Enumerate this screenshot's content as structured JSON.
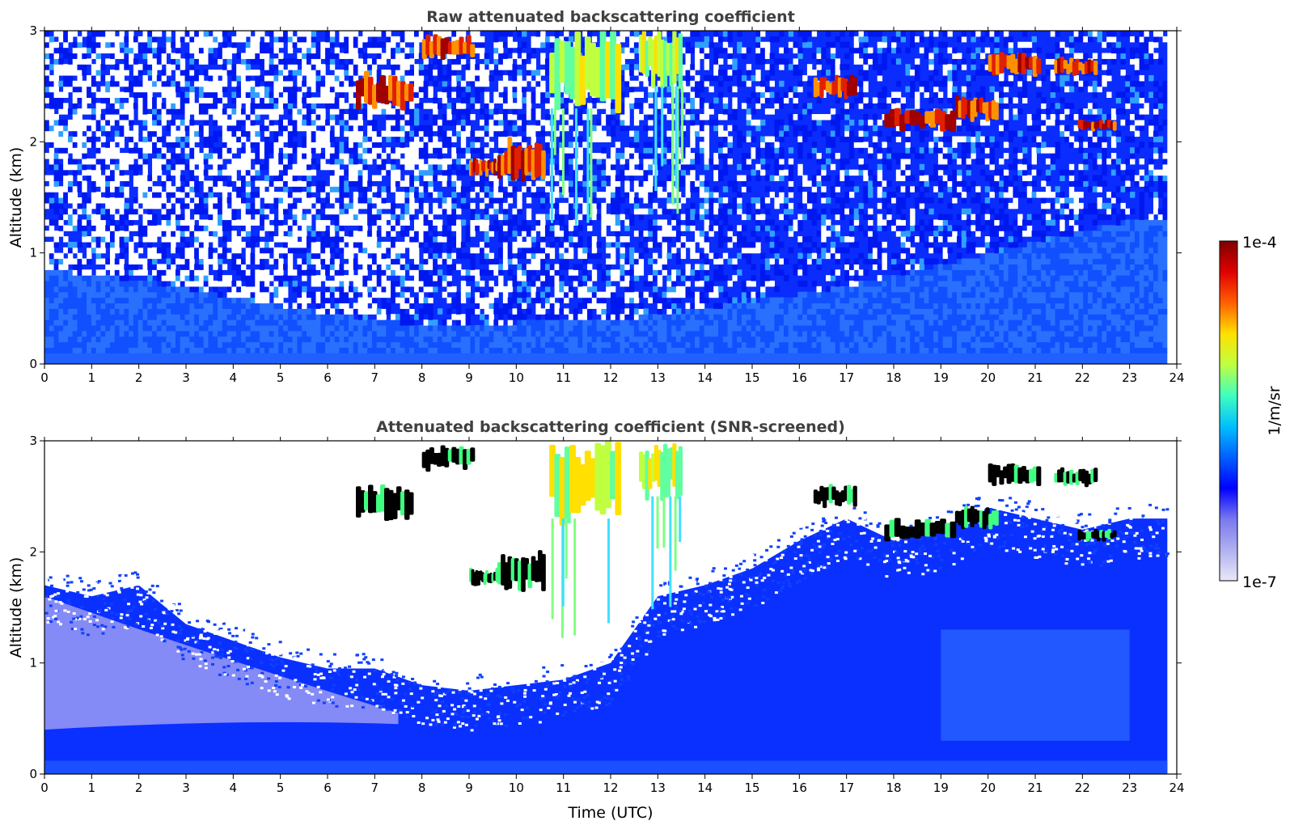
{
  "chart_data": [
    {
      "type": "heatmap",
      "title": "Raw attenuated backscattering coefficient",
      "xlabel": "",
      "ylabel": "Altitude (km)",
      "xlim": [
        0,
        24
      ],
      "ylim": [
        0,
        3
      ],
      "xticks": [
        "0",
        "1",
        "2",
        "3",
        "4",
        "5",
        "6",
        "7",
        "8",
        "9",
        "10",
        "11",
        "12",
        "13",
        "14",
        "15",
        "16",
        "17",
        "18",
        "19",
        "20",
        "21",
        "22",
        "23",
        "24"
      ],
      "yticks": [
        "0",
        "1",
        "2",
        "3"
      ],
      "screened": false,
      "boundary_layer_top_km": [
        [
          0,
          0.85
        ],
        [
          2,
          0.75
        ],
        [
          4,
          0.6
        ],
        [
          6,
          0.45
        ],
        [
          8,
          0.35
        ],
        [
          12,
          0.4
        ],
        [
          14,
          0.5
        ],
        [
          17,
          0.7
        ],
        [
          20,
          1.0
        ],
        [
          23,
          1.3
        ]
      ],
      "cloud_features": [
        {
          "x": [
            6.6,
            7.8
          ],
          "y": [
            2.3,
            2.6
          ],
          "level": "high"
        },
        {
          "x": [
            8.0,
            9.1
          ],
          "y": [
            2.75,
            2.95
          ],
          "level": "high"
        },
        {
          "x": [
            9.0,
            9.6
          ],
          "y": [
            1.7,
            1.85
          ],
          "level": "high"
        },
        {
          "x": [
            9.6,
            10.6
          ],
          "y": [
            1.65,
            2.0
          ],
          "level": "high"
        },
        {
          "x": [
            10.7,
            12.2
          ],
          "y": [
            2.3,
            3.0
          ],
          "level": "medium"
        },
        {
          "x": [
            12.6,
            13.5
          ],
          "y": [
            2.5,
            3.0
          ],
          "level": "medium"
        },
        {
          "x": [
            16.3,
            17.2
          ],
          "y": [
            2.4,
            2.6
          ],
          "level": "high"
        },
        {
          "x": [
            17.8,
            19.3
          ],
          "y": [
            2.1,
            2.3
          ],
          "level": "high"
        },
        {
          "x": [
            19.3,
            20.2
          ],
          "y": [
            2.2,
            2.4
          ],
          "level": "high"
        },
        {
          "x": [
            20.0,
            21.1
          ],
          "y": [
            2.6,
            2.8
          ],
          "level": "high"
        },
        {
          "x": [
            21.4,
            22.3
          ],
          "y": [
            2.6,
            2.75
          ],
          "level": "high"
        },
        {
          "x": [
            21.9,
            22.7
          ],
          "y": [
            2.1,
            2.2
          ],
          "level": "high"
        }
      ]
    },
    {
      "type": "heatmap",
      "title": "Attenuated backscattering coefficient (SNR-screened)",
      "xlabel": "Time (UTC)",
      "ylabel": "Altitude (km)",
      "xlim": [
        0,
        24
      ],
      "ylim": [
        0,
        3
      ],
      "xticks": [
        "0",
        "1",
        "2",
        "3",
        "4",
        "5",
        "6",
        "7",
        "8",
        "9",
        "10",
        "11",
        "12",
        "13",
        "14",
        "15",
        "16",
        "17",
        "18",
        "19",
        "20",
        "21",
        "22",
        "23",
        "24"
      ],
      "yticks": [
        "0",
        "1",
        "2",
        "3"
      ],
      "screened": true,
      "valid_data_top_km": [
        [
          0,
          1.7
        ],
        [
          1,
          1.6
        ],
        [
          2,
          1.7
        ],
        [
          3,
          1.35
        ],
        [
          4,
          1.2
        ],
        [
          5,
          1.05
        ],
        [
          6,
          0.95
        ],
        [
          7,
          0.95
        ],
        [
          8,
          0.8
        ],
        [
          9,
          0.75
        ],
        [
          10,
          0.8
        ],
        [
          11,
          0.85
        ],
        [
          12,
          1.0
        ],
        [
          13,
          1.6
        ],
        [
          14,
          1.7
        ],
        [
          15,
          1.85
        ],
        [
          16,
          2.1
        ],
        [
          17,
          2.3
        ],
        [
          18,
          2.1
        ],
        [
          19,
          2.2
        ],
        [
          20,
          2.4
        ],
        [
          21,
          2.3
        ],
        [
          22,
          2.2
        ],
        [
          23,
          2.3
        ],
        [
          23.8,
          2.3
        ]
      ],
      "cloud_features": [
        {
          "x": [
            6.6,
            7.8
          ],
          "y": [
            2.3,
            2.6
          ],
          "level": "high"
        },
        {
          "x": [
            8.0,
            9.1
          ],
          "y": [
            2.75,
            2.95
          ],
          "level": "high"
        },
        {
          "x": [
            9.0,
            9.6
          ],
          "y": [
            1.7,
            1.85
          ],
          "level": "high"
        },
        {
          "x": [
            9.6,
            10.6
          ],
          "y": [
            1.65,
            2.0
          ],
          "level": "high"
        },
        {
          "x": [
            10.7,
            12.2
          ],
          "y": [
            2.3,
            3.0
          ],
          "level": "medium"
        },
        {
          "x": [
            12.6,
            13.5
          ],
          "y": [
            2.5,
            3.0
          ],
          "level": "medium"
        },
        {
          "x": [
            16.3,
            17.2
          ],
          "y": [
            2.4,
            2.6
          ],
          "level": "high"
        },
        {
          "x": [
            17.8,
            19.3
          ],
          "y": [
            2.1,
            2.3
          ],
          "level": "high"
        },
        {
          "x": [
            19.3,
            20.2
          ],
          "y": [
            2.2,
            2.4
          ],
          "level": "high"
        },
        {
          "x": [
            20.0,
            21.1
          ],
          "y": [
            2.6,
            2.8
          ],
          "level": "high"
        },
        {
          "x": [
            21.4,
            22.3
          ],
          "y": [
            2.6,
            2.75
          ],
          "level": "high"
        },
        {
          "x": [
            21.9,
            22.7
          ],
          "y": [
            2.1,
            2.2
          ],
          "level": "high"
        }
      ]
    }
  ],
  "colorbar": {
    "label": "1/m/sr",
    "max_label": "1e-4",
    "min_label": "1e-7",
    "colormap": "jet",
    "colors": [
      "#e8e8f8",
      "#b0b0f0",
      "#7878f0",
      "#0000ff",
      "#0060ff",
      "#00c0ff",
      "#40ffc0",
      "#c0ff40",
      "#ffe000",
      "#ff6000",
      "#e00000",
      "#800000"
    ]
  }
}
